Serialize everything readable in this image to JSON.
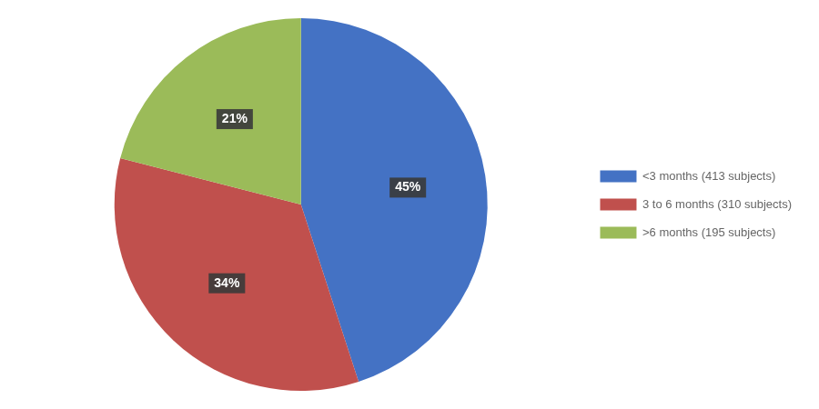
{
  "chart_data": {
    "type": "pie",
    "categories": [
      "<3 months (413 subjects)",
      "3 to 6 months (310 subjects)",
      ">6 months (195 subjects)"
    ],
    "values": [
      45,
      34,
      21
    ],
    "value_labels": [
      "45%",
      "34%",
      "21%"
    ],
    "colors": [
      "#4472C4",
      "#C0504D",
      "#9BBB59"
    ],
    "data_labels": true,
    "legend": "right"
  }
}
